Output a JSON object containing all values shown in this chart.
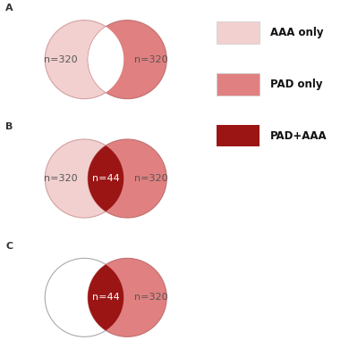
{
  "background_color": "#ffffff",
  "aaa_circle_edge": "#d4a0a0",
  "pad_circle_edge": "#c07070",
  "empty_circle_edge": "#aaaaaa",
  "label_a": "A",
  "label_b": "B",
  "label_c": "C",
  "legend_labels": [
    "AAA only",
    "PAD only",
    "PAD+AAA"
  ],
  "legend_colors": [
    "#f2d0d0",
    "#e08080",
    "#9b1515"
  ],
  "n_color_dark": "#555555",
  "n_color_light": "#ffffff",
  "diagrams": [
    {
      "left_color": "#f2d0d0",
      "right_color": "#e08080",
      "overlap_color": "#ffffff",
      "left_edge": "#d4a0a0",
      "right_edge": "#c07070",
      "left_n": "n=320",
      "right_n": "n=320",
      "overlap_n": null,
      "left_filled": true,
      "right_filled": true,
      "show_overlap_white": true
    },
    {
      "left_color": "#f2d0d0",
      "right_color": "#e08080",
      "overlap_color": "#9b1515",
      "left_edge": "#d4a0a0",
      "right_edge": "#c07070",
      "left_n": "n=320",
      "right_n": "n=320",
      "overlap_n": "n=44",
      "left_filled": true,
      "right_filled": true,
      "show_overlap_white": false
    },
    {
      "left_color": "#ffffff",
      "right_color": "#e08080",
      "overlap_color": "#9b1515",
      "left_edge": "#aaaaaa",
      "right_edge": "#c07070",
      "left_n": null,
      "right_n": "n=320",
      "overlap_n": "n=44",
      "left_filled": false,
      "right_filled": true,
      "show_overlap_white": false
    }
  ]
}
